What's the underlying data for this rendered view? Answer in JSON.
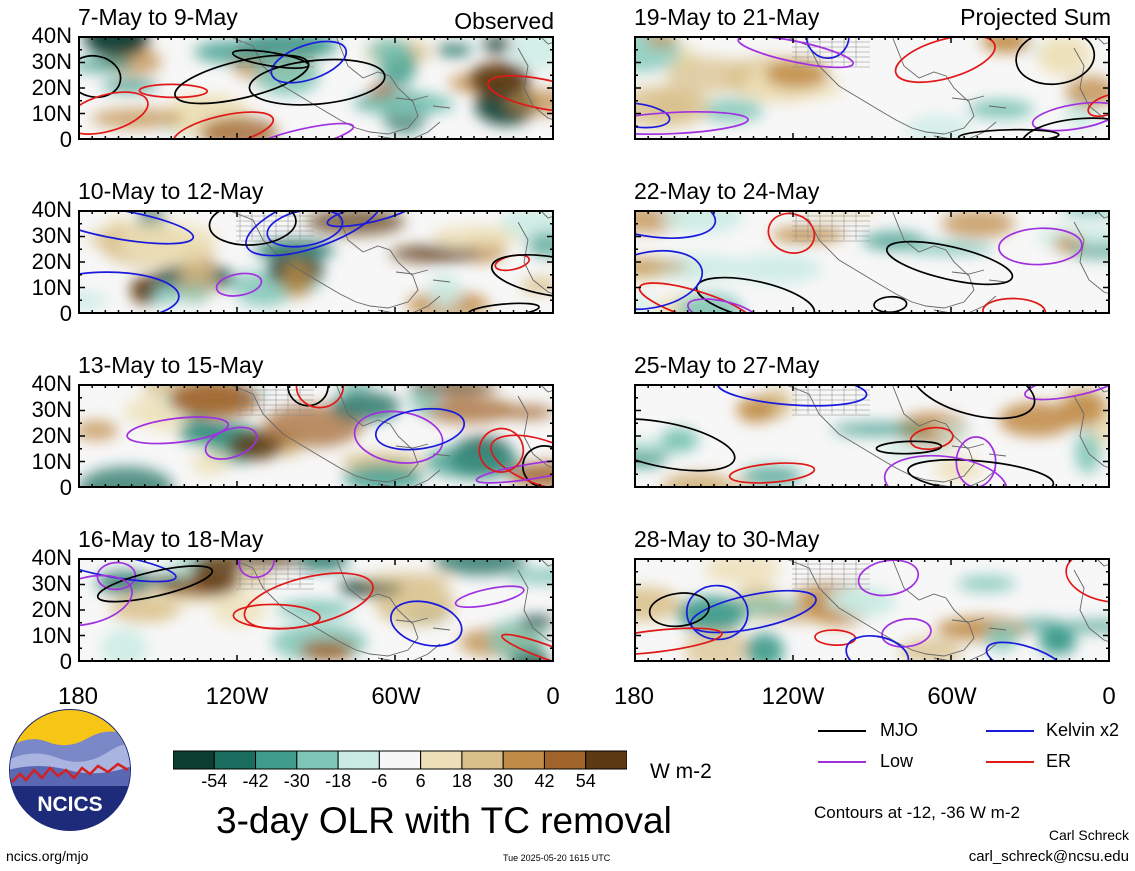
{
  "panels_left": [
    {
      "title": "7-May to 9-May",
      "label": "Observed"
    },
    {
      "title": "10-May to 12-May",
      "label": ""
    },
    {
      "title": "13-May to 15-May",
      "label": ""
    },
    {
      "title": "16-May to 18-May",
      "label": ""
    }
  ],
  "panels_right": [
    {
      "title": "19-May to 21-May",
      "label": "Projected Sum"
    },
    {
      "title": "22-May to 24-May",
      "label": ""
    },
    {
      "title": "25-May to 27-May",
      "label": ""
    },
    {
      "title": "28-May to 30-May",
      "label": ""
    }
  ],
  "y_ticks": [
    "40N",
    "30N",
    "20N",
    "10N",
    "0"
  ],
  "x_ticks": [
    "180",
    "120W",
    "60W",
    "0"
  ],
  "colorbar": {
    "labels": [
      "-54",
      "-42",
      "-30",
      "-18",
      "-6",
      "6",
      "18",
      "30",
      "42",
      "54"
    ],
    "colors": [
      "#0b3d31",
      "#1a6d5e",
      "#3f9c8c",
      "#7fc6b7",
      "#c9ebe3",
      "#f7f7f7",
      "#ede0b8",
      "#d9c08a",
      "#c08b46",
      "#a0632a",
      "#5e3a12"
    ],
    "units": "W m-2"
  },
  "legend": {
    "mjo": {
      "label": "MJO",
      "color": "#000000"
    },
    "kelvin": {
      "label": "Kelvin x2",
      "color": "#1a1adc"
    },
    "low": {
      "label": "Low",
      "color": "#a030e0"
    },
    "er": {
      "label": "ER",
      "color": "#e01818"
    }
  },
  "main_title": "3-day OLR with TC removal",
  "contours_note": "Contours at -12, -36 W m-2",
  "author": "Carl Schreck",
  "email": "carl_schreck@ncsu.edu",
  "site": "ncics.org/mjo",
  "timestamp": "Tue 2025-05-20 1615 UTC",
  "logo_text": "NCICS"
}
